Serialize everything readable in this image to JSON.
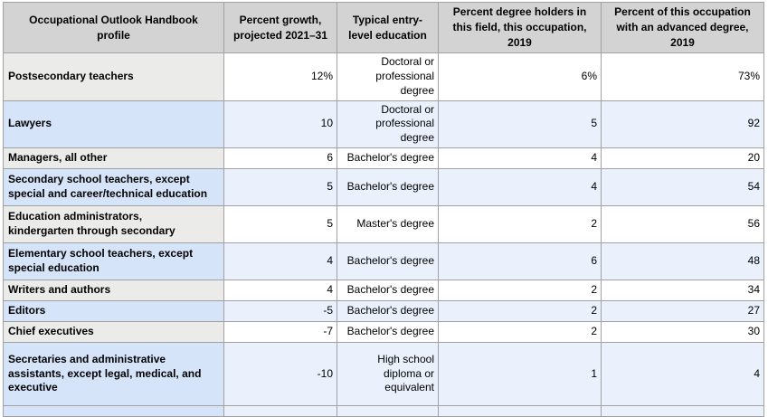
{
  "colors": {
    "border": "#a1a1a1",
    "header_bg": "#d3d3d3",
    "grey_cell": "#ebebe9",
    "blue_cell": "#d5e4f9",
    "pale_blue_cell": "#eaf1fc",
    "text": "#000000",
    "page_bg": "#ffffff"
  },
  "table": {
    "columns": [
      {
        "label": "Occupational Outlook Handbook\nprofile"
      },
      {
        "label": "Percent growth,\nprojected 2021–31"
      },
      {
        "label": "Typical entry-\nlevel education"
      },
      {
        "label": "Percent degree holders in\nthis field, this occupation,\n2019"
      },
      {
        "label": "Percent of this occupation\nwith an advanced degree,\n2019"
      }
    ],
    "rows": [
      {
        "variant": "grey",
        "cells": [
          "Postsecondary teachers",
          "12%",
          "Doctoral or\nprofessional degree",
          "6%",
          "73%"
        ]
      },
      {
        "variant": "blue",
        "cells": [
          "Lawyers",
          "10",
          "Doctoral or\nprofessional degree",
          "5",
          "92"
        ]
      },
      {
        "variant": "grey",
        "cells": [
          "Managers, all other",
          "6",
          "Bachelor's degree",
          "4",
          "20"
        ]
      },
      {
        "variant": "blue",
        "cells": [
          "Secondary school teachers, except\nspecial and career/technical education",
          "5",
          "Bachelor's degree",
          "4",
          "54"
        ]
      },
      {
        "variant": "grey",
        "cells": [
          "Education administrators,\nkindergarten through secondary",
          "5",
          "Master's degree",
          "2",
          "56"
        ]
      },
      {
        "variant": "blue",
        "cells": [
          "Elementary school teachers, except\nspecial education",
          "4",
          "Bachelor's degree",
          "6",
          "48"
        ]
      },
      {
        "variant": "grey",
        "cells": [
          "Writers and authors",
          "4",
          "Bachelor's degree",
          "2",
          "34"
        ]
      },
      {
        "variant": "blue",
        "cells": [
          "Editors",
          "-5",
          "Bachelor's degree",
          "2",
          "27"
        ]
      },
      {
        "variant": "grey",
        "cells": [
          "Chief executives",
          "-7",
          "Bachelor's degree",
          "2",
          "30"
        ]
      },
      {
        "variant": "blue",
        "cells": [
          "Secretaries and administrative\nassistants, except legal, medical, and\nexecutive",
          "-10",
          "High school\ndiploma or\nequivalent",
          "1",
          "4"
        ]
      },
      {
        "variant": "blue",
        "partial": true,
        "cells": [
          "",
          "",
          "",
          "",
          ""
        ]
      }
    ]
  },
  "chart_data": {
    "type": "table",
    "title": "Occupational Outlook Handbook profiles: growth and education data",
    "columns": [
      "Occupational Outlook Handbook profile",
      "Percent growth, projected 2021–31",
      "Typical entry-level education",
      "Percent degree holders in this field, this occupation, 2019",
      "Percent of this occupation with an advanced degree, 2019"
    ],
    "rows": [
      [
        "Postsecondary teachers",
        "12%",
        "Doctoral or professional degree",
        "6%",
        "73%"
      ],
      [
        "Lawyers",
        "10",
        "Doctoral or professional degree",
        "5",
        "92"
      ],
      [
        "Managers, all other",
        "6",
        "Bachelor's degree",
        "4",
        "20"
      ],
      [
        "Secondary school teachers, except special and career/technical education",
        "5",
        "Bachelor's degree",
        "4",
        "54"
      ],
      [
        "Education administrators, kindergarten through secondary",
        "5",
        "Master's degree",
        "2",
        "56"
      ],
      [
        "Elementary school teachers, except special education",
        "4",
        "Bachelor's degree",
        "6",
        "48"
      ],
      [
        "Writers and authors",
        "4",
        "Bachelor's degree",
        "2",
        "34"
      ],
      [
        "Editors",
        "-5",
        "Bachelor's degree",
        "2",
        "27"
      ],
      [
        "Chief executives",
        "-7",
        "Bachelor's degree",
        "2",
        "30"
      ],
      [
        "Secretaries and administrative assistants, except legal, medical, and executive",
        "-10",
        "High school diploma or equivalent",
        "1",
        "4"
      ]
    ]
  }
}
